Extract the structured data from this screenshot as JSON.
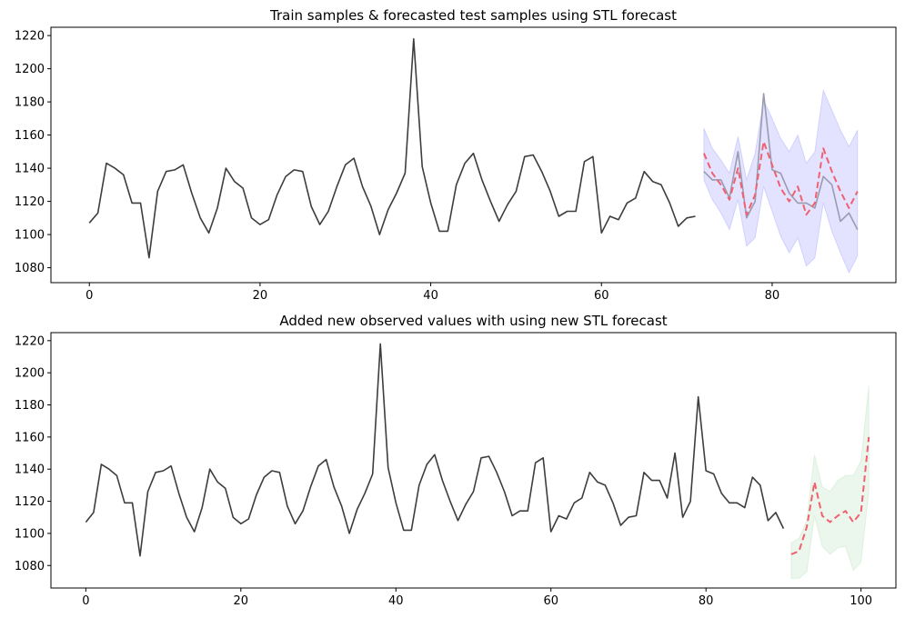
{
  "chart_data": [
    {
      "type": "line",
      "title": "Train samples & forecasted test samples using STL forecast",
      "xlim": [
        -4.5,
        94.5
      ],
      "ylim": [
        1071,
        1225
      ],
      "xticks": [
        0,
        20,
        40,
        60,
        80
      ],
      "yticks": [
        1080,
        1100,
        1120,
        1140,
        1160,
        1180,
        1200,
        1220
      ],
      "grid": false,
      "series": [
        {
          "role": "train",
          "color": "#3d3d3d",
          "x_start": 0,
          "values": [
            1107,
            1113,
            1143,
            1140,
            1136,
            1119,
            1119,
            1086,
            1126,
            1138,
            1139,
            1142,
            1125,
            1110,
            1101,
            1116,
            1140,
            1132,
            1128,
            1110,
            1106,
            1109,
            1124,
            1135,
            1139,
            1138,
            1117,
            1106,
            1114,
            1129,
            1142,
            1146,
            1129,
            1117,
            1100,
            1115,
            1125,
            1137,
            1218,
            1141,
            1119,
            1102,
            1102,
            1130,
            1143,
            1149,
            1133,
            1120,
            1108,
            1118,
            1126,
            1147,
            1148,
            1138,
            1126,
            1111,
            1114,
            1114,
            1144,
            1147,
            1101,
            1111,
            1109,
            1119,
            1122,
            1138,
            1132,
            1130,
            1119,
            1105,
            1110,
            1111
          ]
        },
        {
          "role": "test-actual",
          "color": "#9a9ab0",
          "x_start": 72,
          "values": [
            1138,
            1133,
            1133,
            1122,
            1150,
            1110,
            1120,
            1185,
            1139,
            1137,
            1125,
            1119,
            1119,
            1116,
            1135,
            1130,
            1108,
            1113,
            1103
          ]
        },
        {
          "role": "forecast",
          "color": "#f0606e",
          "dashed": true,
          "x_start": 72,
          "values": [
            1149,
            1137,
            1130,
            1121,
            1140,
            1112,
            1124,
            1156,
            1142,
            1128,
            1120,
            1129,
            1112,
            1119,
            1152,
            1138,
            1126,
            1116,
            1126
          ]
        }
      ],
      "band": {
        "color": "#0000ff",
        "x_start": 72,
        "lower": [
          1133,
          1121,
          1113,
          1103,
          1121,
          1093,
          1098,
          1129,
          1114,
          1099,
          1089,
          1098,
          1081,
          1086,
          1119,
          1102,
          1089,
          1077,
          1087
        ],
        "upper": [
          1164,
          1152,
          1145,
          1137,
          1159,
          1133,
          1149,
          1181,
          1170,
          1158,
          1150,
          1160,
          1143,
          1150,
          1187,
          1175,
          1163,
          1153,
          1163
        ]
      }
    },
    {
      "type": "line",
      "title": "Added new observed values with using new STL forecast",
      "xlim": [
        -4.5,
        104.5
      ],
      "ylim": [
        1066,
        1225
      ],
      "xticks": [
        0,
        20,
        40,
        60,
        80,
        100
      ],
      "yticks": [
        1080,
        1100,
        1120,
        1140,
        1160,
        1180,
        1200,
        1220
      ],
      "grid": false,
      "series": [
        {
          "role": "observed",
          "color": "#3d3d3d",
          "x_start": 0,
          "values": [
            1107,
            1113,
            1143,
            1140,
            1136,
            1119,
            1119,
            1086,
            1126,
            1138,
            1139,
            1142,
            1125,
            1110,
            1101,
            1116,
            1140,
            1132,
            1128,
            1110,
            1106,
            1109,
            1124,
            1135,
            1139,
            1138,
            1117,
            1106,
            1114,
            1129,
            1142,
            1146,
            1129,
            1117,
            1100,
            1115,
            1125,
            1137,
            1218,
            1141,
            1119,
            1102,
            1102,
            1130,
            1143,
            1149,
            1133,
            1120,
            1108,
            1118,
            1126,
            1147,
            1148,
            1138,
            1126,
            1111,
            1114,
            1114,
            1144,
            1147,
            1101,
            1111,
            1109,
            1119,
            1122,
            1138,
            1132,
            1130,
            1119,
            1105,
            1110,
            1111,
            1138,
            1133,
            1133,
            1122,
            1150,
            1110,
            1120,
            1185,
            1139,
            1137,
            1125,
            1119,
            1119,
            1116,
            1135,
            1130,
            1108,
            1113,
            1103
          ]
        },
        {
          "role": "forecast",
          "color": "#f0606e",
          "dashed": true,
          "x_start": 91,
          "values": [
            1087,
            1089,
            1104,
            1132,
            1111,
            1107,
            1111,
            1114,
            1107,
            1113,
            1160
          ]
        }
      ],
      "band": {
        "color": "#4caf50",
        "x_start": 91,
        "lower": [
          1072,
          1072,
          1076,
          1111,
          1092,
          1087,
          1091,
          1092,
          1077,
          1082,
          1126
        ],
        "upper": [
          1094,
          1097,
          1108,
          1149,
          1129,
          1126,
          1133,
          1136,
          1136,
          1145,
          1192
        ]
      }
    }
  ]
}
